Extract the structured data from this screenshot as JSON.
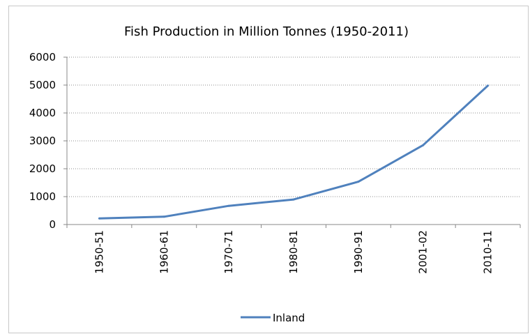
{
  "chart_data": {
    "type": "line",
    "title": "Fish Production in Million Tonnes (1950-2011)",
    "xlabel": "",
    "ylabel": "",
    "categories": [
      "1950-51",
      "1960-61",
      "1970-71",
      "1980-81",
      "1990-91",
      "2001-02",
      "2010-11"
    ],
    "series": [
      {
        "name": "Inland",
        "values": [
          218,
          280,
          670,
          897,
          1536,
          2845,
          4980
        ],
        "color": "#4f81bd"
      }
    ],
    "ylim": [
      0,
      6000
    ],
    "yticks": [
      "0",
      "1000",
      "2000",
      "3000",
      "4000",
      "5000",
      "6000"
    ],
    "grid": "horizontal-dotted",
    "legend": "bottom"
  }
}
